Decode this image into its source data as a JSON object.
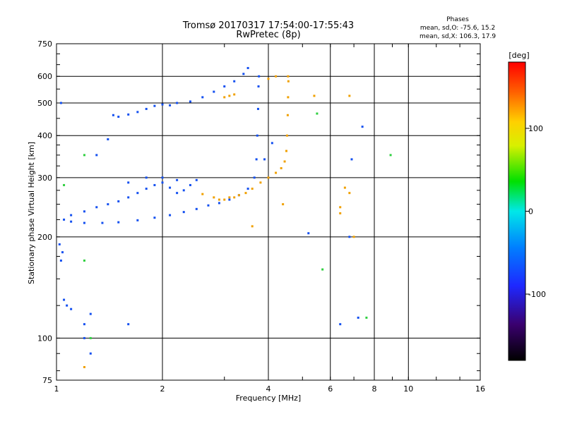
{
  "chart_data": {
    "type": "scatter",
    "title": "Tromsø 20170317 17:54:00-17:55:43",
    "subtitle": "RwPretec (8p)",
    "xlabel": "Frequency [MHz]",
    "ylabel": "Stationary phase Virtual Height [km]",
    "xscale": "log",
    "yscale": "log",
    "xlim": [
      1,
      16
    ],
    "ylim": [
      75,
      750
    ],
    "xticks": [
      1,
      2,
      4,
      6,
      8,
      10,
      16
    ],
    "yticks": [
      75,
      100,
      200,
      300,
      400,
      500,
      600,
      750
    ],
    "xgrid_major": [
      2,
      4,
      6,
      8,
      10
    ],
    "ygrid_major": [
      100,
      200,
      300,
      400,
      500,
      600
    ],
    "legend_block": {
      "heading": "Phases",
      "line1": "mean, sd,O: -75.6, 15.2",
      "line2": "mean, sd,X: 106.3, 17.9"
    },
    "colorbar": {
      "label": "[deg]",
      "range": [
        -180,
        180
      ],
      "ticks": [
        100,
        0,
        -100
      ],
      "placement": "right"
    },
    "series": [
      {
        "name": "O",
        "values": [
          [
            1.05,
            225
          ],
          [
            1.1,
            222
          ],
          [
            1.2,
            220
          ],
          [
            1.35,
            220
          ],
          [
            1.5,
            221
          ],
          [
            1.7,
            224
          ],
          [
            1.9,
            228
          ],
          [
            2.1,
            232
          ],
          [
            2.3,
            237
          ],
          [
            2.5,
            242
          ],
          [
            2.7,
            248
          ],
          [
            2.9,
            252
          ],
          [
            3.1,
            258
          ],
          [
            3.3,
            266
          ],
          [
            3.5,
            278
          ],
          [
            3.65,
            300
          ],
          [
            3.7,
            340
          ],
          [
            3.72,
            400
          ],
          [
            3.74,
            480
          ],
          [
            3.75,
            560
          ],
          [
            3.76,
            600
          ],
          [
            1.1,
            232
          ],
          [
            1.2,
            238
          ],
          [
            1.3,
            245
          ],
          [
            1.4,
            250
          ],
          [
            1.5,
            255
          ],
          [
            1.6,
            262
          ],
          [
            1.7,
            270
          ],
          [
            1.8,
            278
          ],
          [
            1.9,
            285
          ],
          [
            2.0,
            290
          ],
          [
            2.1,
            280
          ],
          [
            2.2,
            270
          ],
          [
            2.3,
            275
          ],
          [
            2.4,
            285
          ],
          [
            2.5,
            295
          ],
          [
            1.6,
            290
          ],
          [
            1.8,
            300
          ],
          [
            2.0,
            300
          ],
          [
            2.2,
            295
          ],
          [
            1.45,
            460
          ],
          [
            1.5,
            455
          ],
          [
            1.6,
            462
          ],
          [
            1.7,
            470
          ],
          [
            1.8,
            480
          ],
          [
            1.9,
            490
          ],
          [
            2.0,
            495
          ],
          [
            2.1,
            492
          ],
          [
            2.2,
            500
          ],
          [
            2.4,
            505
          ],
          [
            2.6,
            520
          ],
          [
            2.8,
            540
          ],
          [
            3.0,
            560
          ],
          [
            3.2,
            580
          ],
          [
            3.4,
            610
          ],
          [
            3.5,
            635
          ],
          [
            1.03,
            500
          ],
          [
            1.02,
            190
          ],
          [
            1.04,
            180
          ],
          [
            1.03,
            170
          ],
          [
            1.05,
            130
          ],
          [
            1.07,
            125
          ],
          [
            1.1,
            122
          ],
          [
            1.25,
            118
          ],
          [
            1.6,
            110
          ],
          [
            1.2,
            110
          ],
          [
            1.2,
            100
          ],
          [
            1.25,
            90
          ],
          [
            1.4,
            390
          ],
          [
            1.3,
            350
          ],
          [
            4.1,
            380
          ],
          [
            3.9,
            340
          ],
          [
            6.4,
            110
          ],
          [
            6.8,
            200
          ],
          [
            5.2,
            205
          ],
          [
            7.2,
            115
          ],
          [
            6.9,
            340
          ],
          [
            7.4,
            425
          ]
        ]
      },
      {
        "name": "X",
        "values": [
          [
            2.6,
            268
          ],
          [
            2.8,
            262
          ],
          [
            2.9,
            258
          ],
          [
            3.0,
            258
          ],
          [
            3.1,
            262
          ],
          [
            3.2,
            262
          ],
          [
            3.3,
            266
          ],
          [
            3.45,
            270
          ],
          [
            3.6,
            278
          ],
          [
            3.8,
            290
          ],
          [
            4.0,
            300
          ],
          [
            4.2,
            310
          ],
          [
            4.35,
            320
          ],
          [
            4.45,
            335
          ],
          [
            4.5,
            360
          ],
          [
            4.52,
            400
          ],
          [
            4.54,
            460
          ],
          [
            4.55,
            520
          ],
          [
            4.56,
            580
          ],
          [
            4.55,
            600
          ],
          [
            3.1,
            525
          ],
          [
            3.2,
            530
          ],
          [
            3.0,
            520
          ],
          [
            4.2,
            600
          ],
          [
            4.0,
            590
          ],
          [
            3.6,
            215
          ],
          [
            4.4,
            250
          ],
          [
            5.4,
            525
          ],
          [
            6.8,
            525
          ],
          [
            7.0,
            200
          ],
          [
            6.6,
            280
          ],
          [
            6.8,
            270
          ],
          [
            6.4,
            245
          ],
          [
            6.4,
            235
          ],
          [
            1.2,
            82
          ]
        ]
      },
      {
        "name": "other",
        "values": [
          [
            1.2,
            350
          ],
          [
            1.05,
            285
          ],
          [
            8.9,
            350
          ],
          [
            1.2,
            170
          ],
          [
            1.25,
            100
          ],
          [
            7.6,
            115
          ],
          [
            5.7,
            160
          ],
          [
            5.5,
            465
          ]
        ]
      }
    ],
    "series_phase_deg": {
      "O": -100,
      "X": 110,
      "other": 20
    }
  },
  "page_colors": {
    "background": "#ffffff",
    "axes": "#000000",
    "grid": "#000000",
    "o_trace": "#1450f0",
    "x_trace": "#f0a000"
  }
}
